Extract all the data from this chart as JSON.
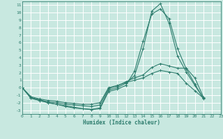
{
  "xlabel": "Humidex (Indice chaleur)",
  "xlim": [
    0,
    23
  ],
  "ylim": [
    -3.5,
    11.5
  ],
  "xticks": [
    0,
    1,
    2,
    3,
    4,
    5,
    6,
    7,
    8,
    9,
    10,
    11,
    12,
    13,
    14,
    15,
    16,
    17,
    18,
    19,
    20,
    21,
    22,
    23
  ],
  "yticks": [
    -3,
    -2,
    -1,
    0,
    1,
    2,
    3,
    4,
    5,
    6,
    7,
    8,
    9,
    10,
    11
  ],
  "background_color": "#c8e8e0",
  "grid_color": "#ffffff",
  "line_color": "#2e7d6e",
  "series": [
    [
      0,
      -1.4,
      -1.7,
      -2.0,
      -2.2,
      -2.5,
      -2.7,
      -2.8,
      -2.9,
      -2.8,
      -0.5,
      -0.2,
      0.3,
      2.2,
      6.2,
      9.8,
      10.5,
      9.2,
      5.2,
      2.5,
      0.5,
      -1.5,
      null,
      null
    ],
    [
      0,
      -1.4,
      -1.7,
      -2.0,
      -2.2,
      -2.4,
      -2.6,
      -2.8,
      -2.9,
      -2.7,
      -0.3,
      0.0,
      0.6,
      1.6,
      5.2,
      10.2,
      11.2,
      8.6,
      4.2,
      2.1,
      0.3,
      -1.4,
      null,
      null
    ],
    [
      0,
      -1.3,
      -1.6,
      -1.9,
      -2.0,
      -2.2,
      -2.3,
      -2.4,
      -2.5,
      -2.3,
      -0.1,
      0.2,
      0.8,
      1.3,
      1.7,
      2.7,
      3.2,
      2.9,
      2.6,
      2.6,
      1.3,
      -1.3,
      null,
      null
    ],
    [
      0,
      -1.2,
      -1.5,
      -1.7,
      -1.8,
      -2.0,
      -2.1,
      -2.2,
      -2.2,
      -2.0,
      0.0,
      0.3,
      0.7,
      1.0,
      1.3,
      1.9,
      2.3,
      2.1,
      1.9,
      0.6,
      -0.4,
      -1.4,
      null,
      null
    ]
  ]
}
